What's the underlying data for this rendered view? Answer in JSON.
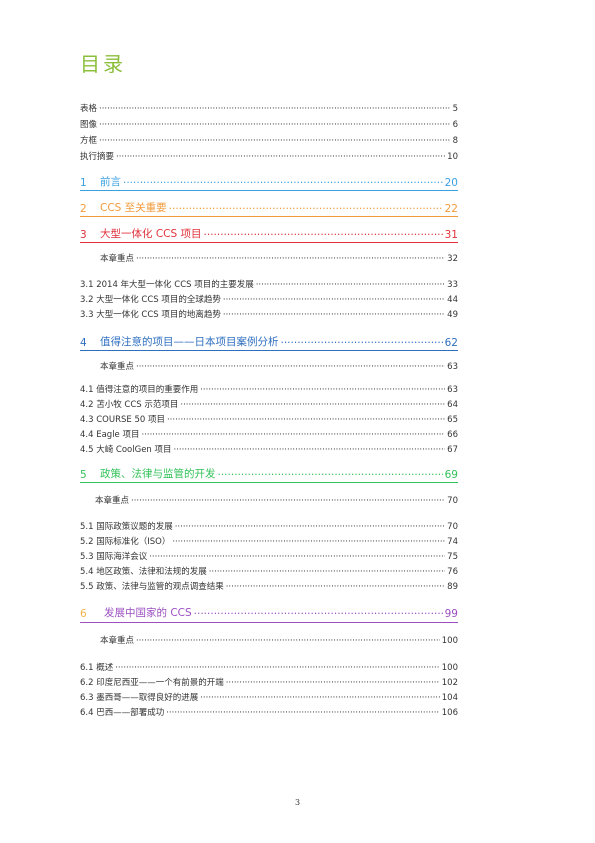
{
  "title": "目录",
  "front_items": [
    {
      "label": "表格",
      "page": "5"
    },
    {
      "label": "图像",
      "page": "6"
    },
    {
      "label": "方框",
      "page": "8"
    },
    {
      "label": "执行摘要",
      "page": "10"
    }
  ],
  "chapters": [
    {
      "num": "1",
      "label": "前言",
      "page": "20",
      "color": "#3aa0e0"
    },
    {
      "num": "2",
      "label": "CCS 至关重要",
      "page": "22",
      "color": "#f29a3a"
    },
    {
      "num": "3",
      "label": "大型一体化 CCS 项目",
      "page": "31",
      "color": "#e0313a"
    },
    {
      "num": "4",
      "label": "值得注意的项目——日本项目案例分析",
      "page": "62",
      "color": "#2f6fc0"
    },
    {
      "num": "5",
      "label": "政策、法律与监管的开发",
      "page": "69",
      "color": "#33c25a"
    },
    {
      "num": "6",
      "label": "发展中国家的 CCS",
      "page": "99",
      "color": "#9b4fc0"
    }
  ],
  "key_points": [
    {
      "label": "本章重点",
      "page": "32"
    },
    {
      "label": "本章重点",
      "page": "63"
    },
    {
      "label": "本章重点",
      "page": "70"
    },
    {
      "label": "本章重点",
      "page": "100"
    }
  ],
  "sections": [
    {
      "label": "3.1 2014 年大型一体化 CCS 项目的主要发展",
      "page": "33"
    },
    {
      "label": "3.2 大型一体化 CCS 项目的全球趋势",
      "page": "44"
    },
    {
      "label": "3.3 大型一体化 CCS 项目的地离趋势",
      "page": "49"
    },
    {
      "label": "4.1 值得注意的项目的重要作用",
      "page": "63"
    },
    {
      "label": "4.2 苫小牧 CCS 示范项目",
      "page": "64"
    },
    {
      "label": "4.3 COURSE 50 项目",
      "page": "65"
    },
    {
      "label": "4.4 Eagle 项目",
      "page": "66"
    },
    {
      "label": "4.5 大崎 CoolGen 项目",
      "page": "67"
    },
    {
      "label": "5.1 国际政策议题的发展",
      "page": "70"
    },
    {
      "label": "5.2 国际标准化（ISO）",
      "page": "74"
    },
    {
      "label": "5.3 国际海洋会议",
      "page": "75"
    },
    {
      "label": "5.4 地区政策、法律和法规的发展",
      "page": "76"
    },
    {
      "label": "5.5 政策、法律与监管的观点调查结果",
      "page": "89"
    },
    {
      "label": "6.1 概述",
      "page": "100"
    },
    {
      "label": "6.2 印度尼西亚——一个有前景的开端",
      "page": "102"
    },
    {
      "label": "6.3 墨西哥——取得良好的进展",
      "page": "104"
    },
    {
      "label": "6.4 巴西——部署成功",
      "page": "106"
    }
  ],
  "footer_page": "3"
}
